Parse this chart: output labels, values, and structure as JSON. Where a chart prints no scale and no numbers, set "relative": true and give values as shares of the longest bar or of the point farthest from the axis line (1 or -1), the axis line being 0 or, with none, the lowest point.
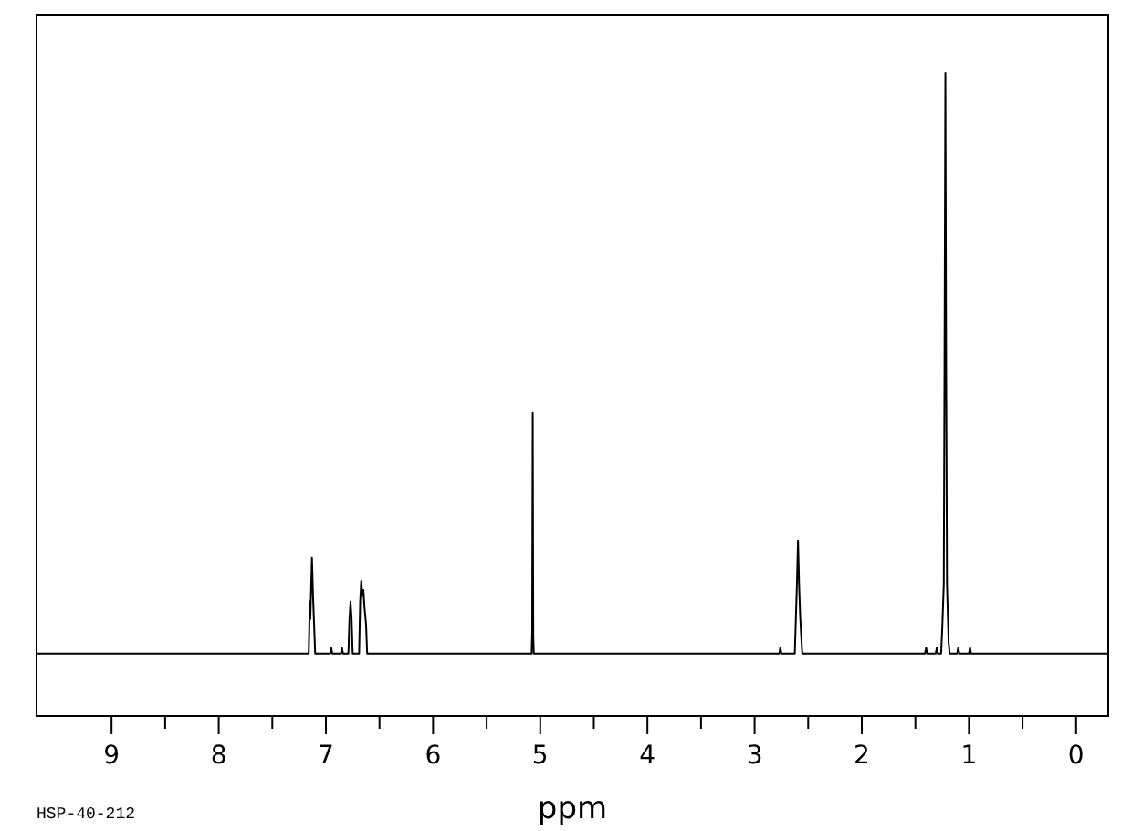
{
  "chart_data": {
    "type": "line",
    "xlabel": "ppm",
    "annotations": [
      "HSP-40-212"
    ],
    "relative": true,
    "color": "#000000",
    "xlim": [
      9.7,
      -0.3
    ],
    "xticks": [
      9,
      {
        "value": 8.5,
        "label": null
      },
      8,
      {
        "value": 7.5,
        "label": null
      },
      7,
      {
        "value": 6.5,
        "label": null
      },
      6,
      {
        "value": 5.5,
        "label": null
      },
      5,
      {
        "value": 4.5,
        "label": null
      },
      4,
      {
        "value": 3.5,
        "label": null
      },
      3,
      {
        "value": 2.5,
        "label": null
      },
      2,
      {
        "value": 1.5,
        "label": null
      },
      1,
      {
        "value": 0.5,
        "label": null
      },
      0
    ],
    "x": [
      9.7,
      7.16,
      7.15,
      7.145,
      7.13,
      7.12,
      7.11,
      7.1,
      6.96,
      6.95,
      6.94,
      6.86,
      6.85,
      6.84,
      6.79,
      6.78,
      6.77,
      6.76,
      6.75,
      6.69,
      6.68,
      6.67,
      6.66,
      6.65,
      6.64,
      6.625,
      6.615,
      5.08,
      5.075,
      5.07,
      5.065,
      5.06,
      2.77,
      2.76,
      2.75,
      2.625,
      2.615,
      2.605,
      2.595,
      2.585,
      2.575,
      2.565,
      2.555,
      1.41,
      1.4,
      1.39,
      1.31,
      1.3,
      1.29,
      1.26,
      1.25,
      1.235,
      1.228,
      1.22,
      1.213,
      1.205,
      1.19,
      1.18,
      1.11,
      1.1,
      1.09,
      1.0,
      0.99,
      0.98,
      -0.3
    ],
    "values": [
      0.097,
      0.097,
      0.178,
      0.151,
      0.246,
      0.187,
      0.142,
      0.097,
      0.097,
      0.106,
      0.097,
      0.097,
      0.106,
      0.097,
      0.097,
      0.151,
      0.178,
      0.151,
      0.097,
      0.097,
      0.178,
      0.21,
      0.187,
      0.196,
      0.169,
      0.142,
      0.097,
      0.097,
      0.129,
      0.472,
      0.124,
      0.097,
      0.097,
      0.106,
      0.097,
      0.097,
      0.151,
      0.205,
      0.273,
      0.205,
      0.156,
      0.124,
      0.097,
      0.097,
      0.106,
      0.097,
      0.097,
      0.106,
      0.097,
      0.097,
      0.133,
      0.205,
      0.549,
      1,
      0.549,
      0.205,
      0.115,
      0.097,
      0.097,
      0.106,
      0.097,
      0.097,
      0.106,
      0.097,
      0.097
    ]
  }
}
